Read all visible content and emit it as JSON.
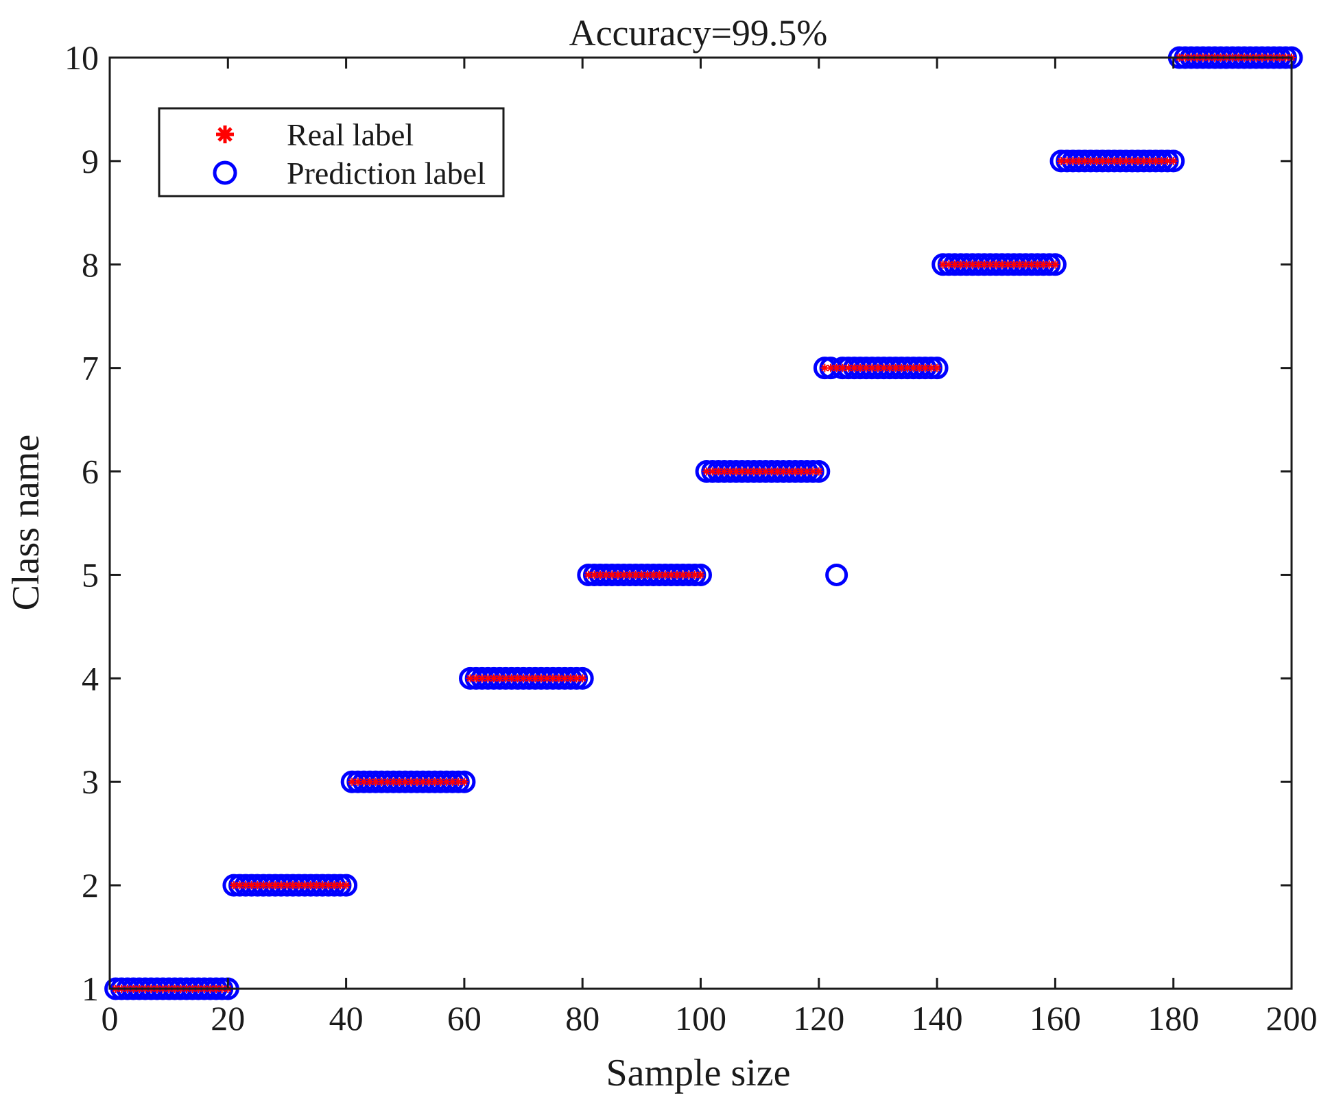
{
  "chart_data": {
    "type": "scatter",
    "title": "Accuracy=99.5%",
    "xlabel": "Sample size",
    "ylabel": "Class name",
    "xlim": [
      0,
      200
    ],
    "ylim": [
      1,
      10
    ],
    "xticks": [
      0,
      20,
      40,
      60,
      80,
      100,
      120,
      140,
      160,
      180,
      200
    ],
    "yticks": [
      1,
      2,
      3,
      4,
      5,
      6,
      7,
      8,
      9,
      10
    ],
    "grid": false,
    "legend_position": "top-left",
    "series": [
      {
        "name": "Real label",
        "marker": "asterisk",
        "color": "#ff0000",
        "points": {
          "note": "",
          "segments": [
            {
              "x_start": 1,
              "x_end": 20,
              "y": 1
            },
            {
              "x_start": 21,
              "x_end": 40,
              "y": 2
            },
            {
              "x_start": 41,
              "x_end": 60,
              "y": 3
            },
            {
              "x_start": 61,
              "x_end": 80,
              "y": 4
            },
            {
              "x_start": 81,
              "x_end": 100,
              "y": 5
            },
            {
              "x_start": 101,
              "x_end": 120,
              "y": 6
            },
            {
              "x_start": 121,
              "x_end": 140,
              "y": 7
            },
            {
              "x_start": 141,
              "x_end": 160,
              "y": 8
            },
            {
              "x_start": 161,
              "x_end": 180,
              "y": 9
            },
            {
              "x_start": 181,
              "x_end": 200,
              "y": 10
            }
          ]
        }
      },
      {
        "name": "Prediction label",
        "marker": "circle",
        "color": "#0000ff",
        "points": {
          "segments": [
            {
              "x_start": 1,
              "x_end": 20,
              "y": 1
            },
            {
              "x_start": 21,
              "x_end": 40,
              "y": 2
            },
            {
              "x_start": 41,
              "x_end": 60,
              "y": 3
            },
            {
              "x_start": 61,
              "x_end": 80,
              "y": 4
            },
            {
              "x_start": 81,
              "x_end": 100,
              "y": 5
            },
            {
              "x_start": 101,
              "x_end": 120,
              "y": 6
            },
            {
              "x_start": 121,
              "x_end": 122,
              "y": 7
            },
            {
              "x_start": 124,
              "x_end": 140,
              "y": 7
            },
            {
              "x_start": 141,
              "x_end": 160,
              "y": 8
            },
            {
              "x_start": 161,
              "x_end": 180,
              "y": 9
            },
            {
              "x_start": 181,
              "x_end": 200,
              "y": 10
            }
          ],
          "extra": [
            {
              "x": 123,
              "y": 5
            }
          ]
        }
      }
    ]
  }
}
